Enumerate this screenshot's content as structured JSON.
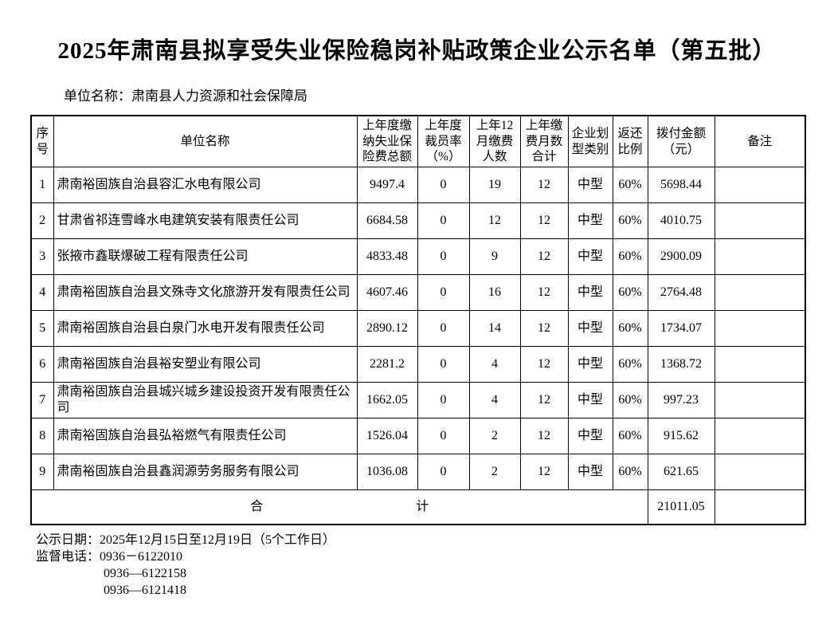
{
  "title": "2025年肃南县拟享受失业保险稳岗补贴政策企业公示名单（第五批）",
  "subtitle": "单位名称：肃南县人力资源和社会保障局",
  "colors": {
    "text": "#000000",
    "border": "#000000",
    "background": "#ffffff"
  },
  "table": {
    "headers": [
      "序号",
      "单位名称",
      "上年度缴纳失业保险费总额",
      "上年度裁员率（%）",
      "上年12月缴费人数",
      "上年缴费月数合计",
      "企业划型类别",
      "返还比例",
      "拨付金额（元）",
      "备注"
    ],
    "rows": [
      {
        "no": "1",
        "name": "肃南裕固族自治县容汇水电有限公司",
        "premium": "9497.4",
        "layoff_rate": "0",
        "dec_payers": "19",
        "months": "12",
        "type": "中型",
        "ratio": "60%",
        "amount": "5698.44",
        "remark": ""
      },
      {
        "no": "2",
        "name": "甘肃省祁连雪峰水电建筑安装有限责任公司",
        "premium": "6684.58",
        "layoff_rate": "0",
        "dec_payers": "12",
        "months": "12",
        "type": "中型",
        "ratio": "60%",
        "amount": "4010.75",
        "remark": ""
      },
      {
        "no": "3",
        "name": "张掖市鑫联爆破工程有限责任公司",
        "premium": "4833.48",
        "layoff_rate": "0",
        "dec_payers": "9",
        "months": "12",
        "type": "中型",
        "ratio": "60%",
        "amount": "2900.09",
        "remark": ""
      },
      {
        "no": "4",
        "name": "肃南裕固族自治县文殊寺文化旅游开发有限责任公司",
        "premium": "4607.46",
        "layoff_rate": "0",
        "dec_payers": "16",
        "months": "12",
        "type": "中型",
        "ratio": "60%",
        "amount": "2764.48",
        "remark": ""
      },
      {
        "no": "5",
        "name": "肃南裕固族自治县白泉门水电开发有限责任公司",
        "premium": "2890.12",
        "layoff_rate": "0",
        "dec_payers": "14",
        "months": "12",
        "type": "中型",
        "ratio": "60%",
        "amount": "1734.07",
        "remark": ""
      },
      {
        "no": "6",
        "name": "肃南裕固族自治县裕安塑业有限公司",
        "premium": "2281.2",
        "layoff_rate": "0",
        "dec_payers": "4",
        "months": "12",
        "type": "中型",
        "ratio": "60%",
        "amount": "1368.72",
        "remark": ""
      },
      {
        "no": "7",
        "name": "肃南裕固族自治县城兴城乡建设投资开发有限责任公司",
        "premium": "1662.05",
        "layoff_rate": "0",
        "dec_payers": "4",
        "months": "12",
        "type": "中型",
        "ratio": "60%",
        "amount": "997.23",
        "remark": ""
      },
      {
        "no": "8",
        "name": "肃南裕固族自治县弘裕燃气有限责任公司",
        "premium": "1526.04",
        "layoff_rate": "0",
        "dec_payers": "2",
        "months": "12",
        "type": "中型",
        "ratio": "60%",
        "amount": "915.62",
        "remark": ""
      },
      {
        "no": "9",
        "name": "肃南裕固族自治县鑫润源劳务服务有限公司",
        "premium": "1036.08",
        "layoff_rate": "0",
        "dec_payers": "2",
        "months": "12",
        "type": "中型",
        "ratio": "60%",
        "amount": "621.65",
        "remark": ""
      }
    ],
    "total": {
      "label": "合　　　　　　　　　　　　计",
      "amount": "21011.05",
      "remark": ""
    }
  },
  "footer": {
    "publicity_date_label": "公示日期：",
    "publicity_date": "2025年12月15日至12月19日（5个工作日）",
    "phone_label": "监督电话：",
    "phones": [
      "0936－6122010",
      "0936—6122158",
      "0936—6121418"
    ]
  }
}
